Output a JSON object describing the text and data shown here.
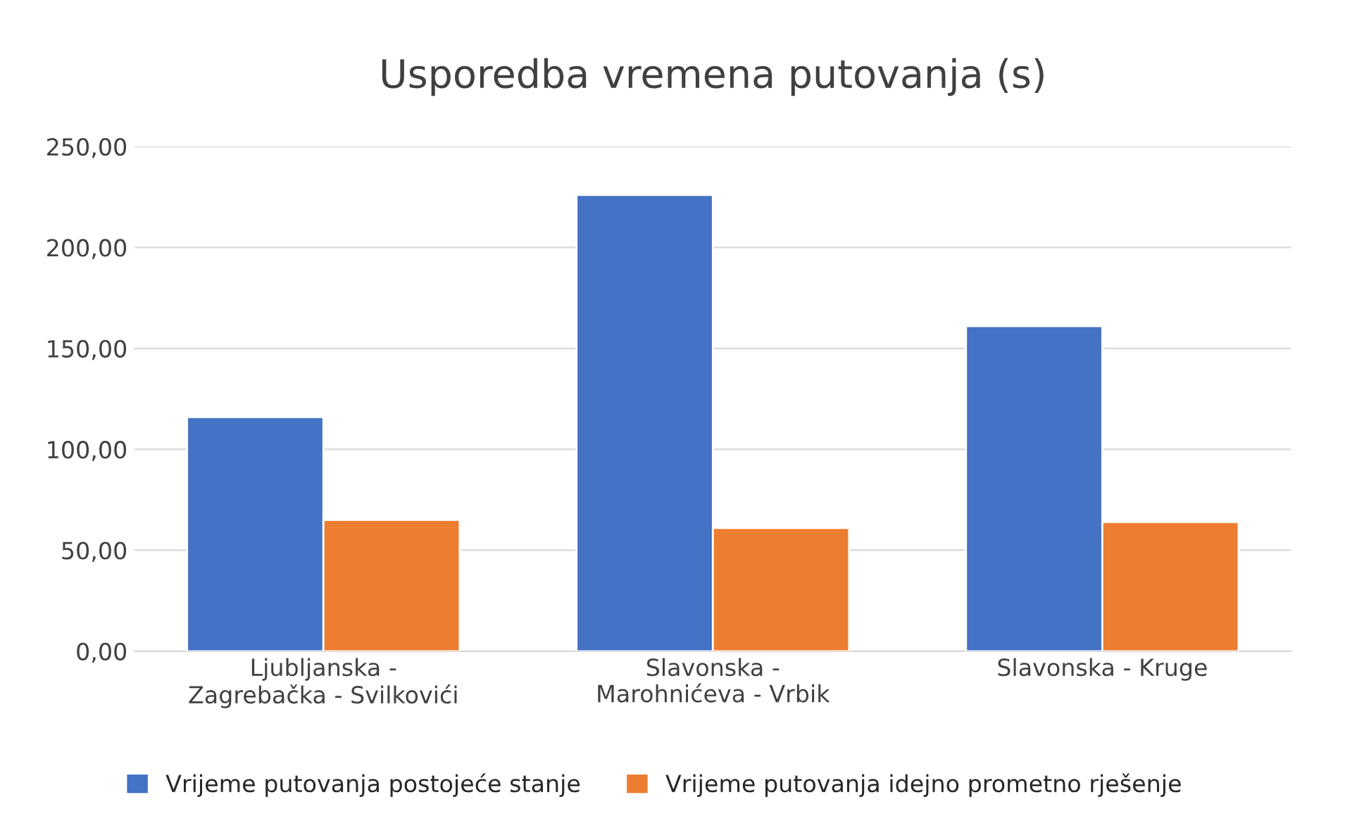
{
  "chart_data": {
    "type": "bar",
    "title": "Usporedba vremena putovanja (s)",
    "categories": [
      "Ljubljanska -\nZagrebačka - Svilkovići",
      "Slavonska -\nMarohnićeva - Vrbik",
      "Slavonska - Kruge"
    ],
    "series": [
      {
        "name": "Vrijeme putovanja postojeće stanje",
        "color": "#4472c4",
        "values": [
          116,
          226,
          161
        ]
      },
      {
        "name": "Vrijeme putovanja idejno prometno rješenje",
        "color": "#ed7d31",
        "values": [
          65,
          61,
          64
        ]
      }
    ],
    "ylim": [
      0,
      250
    ],
    "yticks": [
      {
        "value": 0,
        "label": "0,00"
      },
      {
        "value": 50,
        "label": "50,00"
      },
      {
        "value": 100,
        "label": "100,00"
      },
      {
        "value": 150,
        "label": "150,00"
      },
      {
        "value": 200,
        "label": "200,00"
      },
      {
        "value": 250,
        "label": "250,00"
      }
    ],
    "grid": "y",
    "legend": "bottom"
  }
}
